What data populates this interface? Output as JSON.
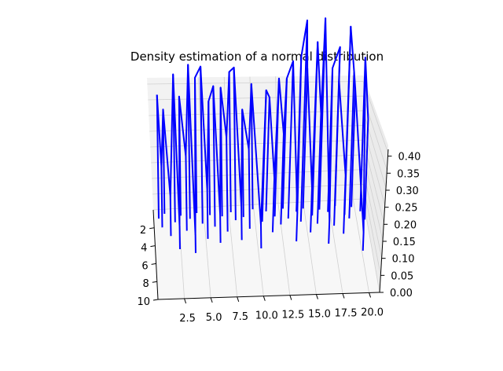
{
  "chart_data": {
    "type": "line",
    "projection": "3d",
    "title": "Density estimation of a normal distribution",
    "xlabel": "",
    "ylabel": "",
    "zlabel": "",
    "x_ticks": [
      "2.5",
      "5.0",
      "7.5",
      "10.0",
      "12.5",
      "15.0",
      "17.5",
      "20.0"
    ],
    "y_ticks": [
      "2",
      "4",
      "6",
      "8",
      "10"
    ],
    "z_ticks": [
      "0.00",
      "0.05",
      "0.10",
      "0.15",
      "0.20",
      "0.25",
      "0.30",
      "0.35",
      "0.40"
    ],
    "xlim": [
      0,
      21
    ],
    "ylim": [
      0,
      10
    ],
    "zlim": [
      0,
      0.42
    ],
    "grid": true,
    "series": [
      {
        "color": "#0000ff",
        "values": [
          {
            "x": 0.5,
            "y": 1.0,
            "z": 0.24
          },
          {
            "x": 0.8,
            "y": 2.0,
            "z": 0.12
          },
          {
            "x": 1.1,
            "y": 0.5,
            "z": 0.2
          },
          {
            "x": 1.6,
            "y": 3.0,
            "z": 0.08
          },
          {
            "x": 2.1,
            "y": 1.5,
            "z": 0.29
          },
          {
            "x": 2.4,
            "y": 4.5,
            "z": 0.05
          },
          {
            "x": 2.7,
            "y": 0.8,
            "z": 0.23
          },
          {
            "x": 3.2,
            "y": 2.5,
            "z": 0.15
          },
          {
            "x": 3.6,
            "y": 1.2,
            "z": 0.3
          },
          {
            "x": 3.9,
            "y": 5.0,
            "z": 0.04
          },
          {
            "x": 4.3,
            "y": 0.6,
            "z": 0.26
          },
          {
            "x": 4.8,
            "y": 1.8,
            "z": 0.31
          },
          {
            "x": 5.2,
            "y": 3.5,
            "z": 0.1
          },
          {
            "x": 5.6,
            "y": 0.9,
            "z": 0.22
          },
          {
            "x": 6.0,
            "y": 2.2,
            "z": 0.28
          },
          {
            "x": 6.4,
            "y": 4.0,
            "z": 0.06
          },
          {
            "x": 6.8,
            "y": 1.1,
            "z": 0.25
          },
          {
            "x": 7.2,
            "y": 2.8,
            "z": 0.19
          },
          {
            "x": 7.7,
            "y": 0.7,
            "z": 0.27
          },
          {
            "x": 8.1,
            "y": 1.6,
            "z": 0.3
          },
          {
            "x": 8.5,
            "y": 3.8,
            "z": 0.07
          },
          {
            "x": 8.9,
            "y": 1.3,
            "z": 0.21
          },
          {
            "x": 9.4,
            "y": 2.6,
            "z": 0.16
          },
          {
            "x": 9.9,
            "y": 0.5,
            "z": 0.24
          },
          {
            "x": 10.3,
            "y": 4.8,
            "z": 0.05
          },
          {
            "x": 10.7,
            "y": 1.9,
            "z": 0.26
          },
          {
            "x": 11.2,
            "y": 0.8,
            "z": 0.22
          },
          {
            "x": 11.6,
            "y": 3.1,
            "z": 0.11
          },
          {
            "x": 12.0,
            "y": 1.4,
            "z": 0.27
          },
          {
            "x": 12.5,
            "y": 2.3,
            "z": 0.18
          },
          {
            "x": 12.9,
            "y": 0.6,
            "z": 0.25
          },
          {
            "x": 13.3,
            "y": 1.7,
            "z": 0.31
          },
          {
            "x": 13.8,
            "y": 4.2,
            "z": 0.06
          },
          {
            "x": 14.2,
            "y": 1.0,
            "z": 0.3
          },
          {
            "x": 14.5,
            "y": 2.1,
            "z": 0.4
          },
          {
            "x": 14.9,
            "y": 0.7,
            "z": 0.27
          },
          {
            "x": 15.3,
            "y": 3.3,
            "z": 0.09
          },
          {
            "x": 15.7,
            "y": 1.5,
            "z": 0.34
          },
          {
            "x": 16.1,
            "y": 2.4,
            "z": 0.22
          },
          {
            "x": 16.5,
            "y": 0.9,
            "z": 0.37
          },
          {
            "x": 16.9,
            "y": 4.6,
            "z": 0.05
          },
          {
            "x": 17.3,
            "y": 1.2,
            "z": 0.28
          },
          {
            "x": 17.7,
            "y": 2.7,
            "z": 0.36
          },
          {
            "x": 18.1,
            "y": 0.6,
            "z": 0.24
          },
          {
            "x": 18.5,
            "y": 3.6,
            "z": 0.12
          },
          {
            "x": 18.9,
            "y": 1.6,
            "z": 0.37
          },
          {
            "x": 19.3,
            "y": 2.0,
            "z": 0.29
          },
          {
            "x": 19.7,
            "y": 0.8,
            "z": 0.23
          },
          {
            "x": 20.1,
            "y": 5.5,
            "z": 0.04
          },
          {
            "x": 20.5,
            "y": 1.3,
            "z": 0.3
          },
          {
            "x": 20.8,
            "y": 2.2,
            "z": 0.2
          }
        ]
      }
    ]
  }
}
